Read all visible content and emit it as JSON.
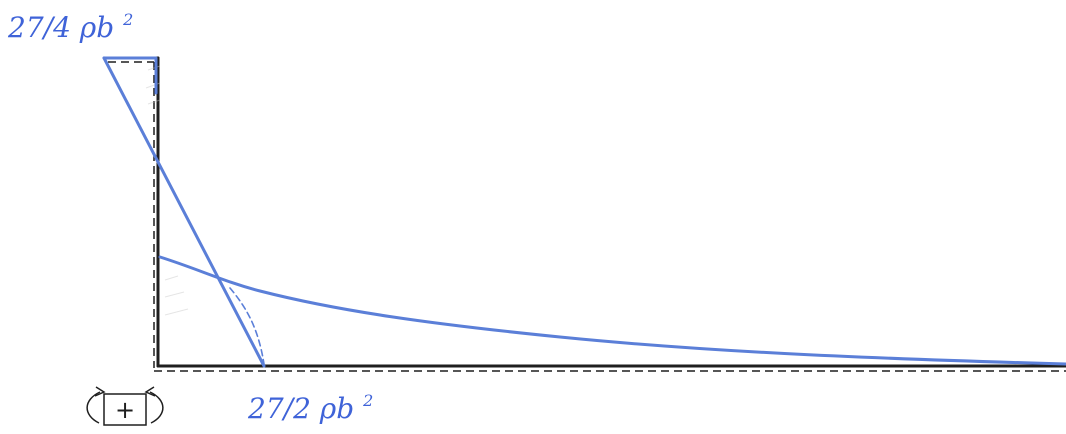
{
  "labels": {
    "top_value": "27/4",
    "top_symbol": "ρb",
    "top_power": "2",
    "bottom_value": "27/2",
    "bottom_symbol": "ρb",
    "bottom_power": "2"
  },
  "moment_icon": {
    "name": "moment-icon",
    "symbol": "+"
  },
  "colors": {
    "structure": "#1f1f1f",
    "diagram": "#5b7fd8",
    "label": "#3f63d8"
  }
}
